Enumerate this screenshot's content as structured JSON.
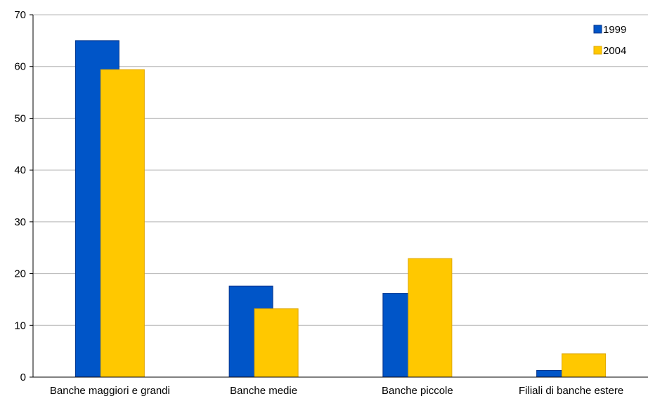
{
  "chart_data": {
    "type": "bar",
    "categories": [
      "Banche maggiori e grandi",
      "Banche medie",
      "Banche piccole",
      "Filiali di banche estere"
    ],
    "series": [
      {
        "name": "1999",
        "values": [
          65.0,
          17.6,
          16.2,
          1.3
        ],
        "color": "#0055C8",
        "edge": "#00338A"
      },
      {
        "name": "2004",
        "values": [
          59.4,
          13.2,
          22.9,
          4.5
        ],
        "color": "#FFC800",
        "edge": "#E0A800"
      }
    ],
    "yticks": [
      0,
      10,
      20,
      30,
      40,
      50,
      60,
      70
    ],
    "ylim": [
      0,
      70
    ],
    "grid": true,
    "legend": "top-right",
    "title": "",
    "xlabel": "",
    "ylabel": ""
  }
}
